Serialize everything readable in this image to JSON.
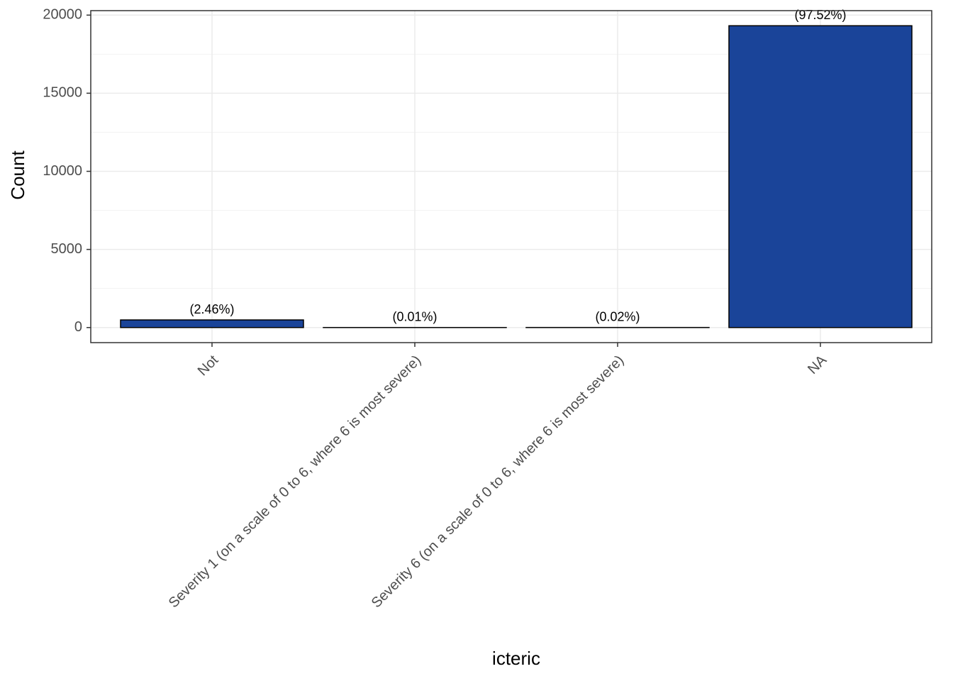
{
  "chart_data": {
    "type": "bar",
    "x_label": "icteric",
    "y_label": "Count",
    "categories": [
      "Not",
      "Severity 1 (on a scale of 0 to 6, where 6 is most severe)",
      "Severity 6 (on a scale of 0 to 6, where 6 is most severe)",
      "NA"
    ],
    "values": [
      487,
      2,
      4,
      19320
    ],
    "percent_labels": [
      "(2.46%)",
      "(0.01%)",
      "(0.02%)",
      "(97.52%)"
    ],
    "color": "#1a4499",
    "ylim": [
      -966,
      20286
    ],
    "yticks": [
      0,
      5000,
      10000,
      15000,
      20000
    ],
    "grid": true
  }
}
